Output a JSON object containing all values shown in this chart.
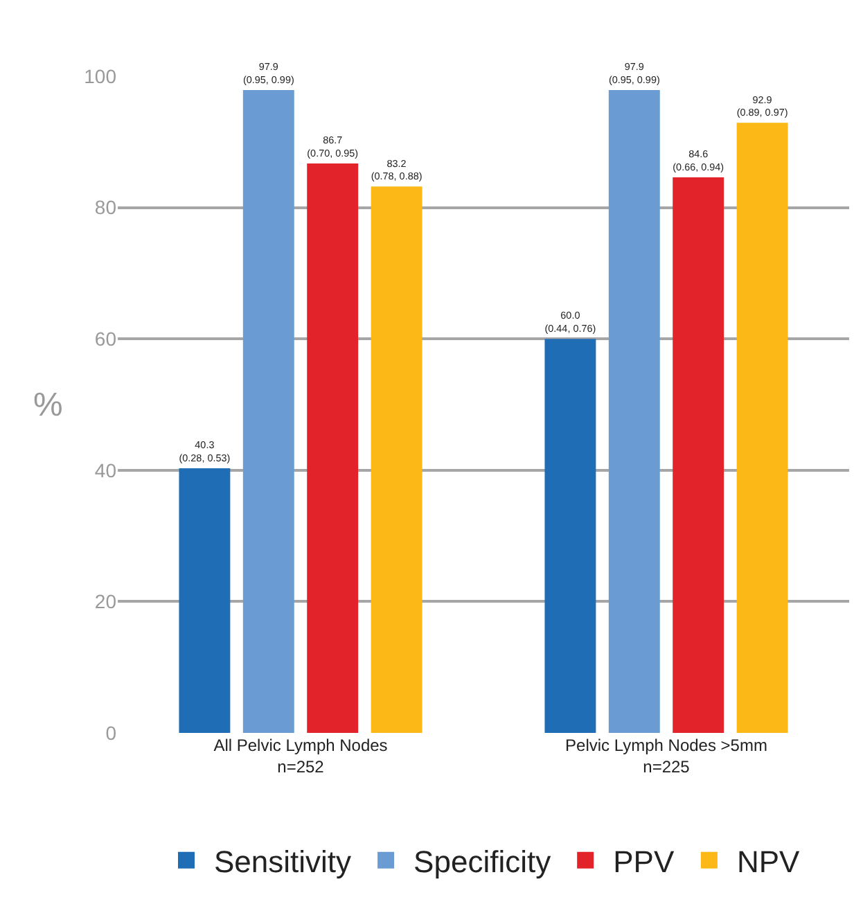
{
  "chart_data": {
    "type": "bar",
    "ylabel": "%",
    "categories": [
      "All Pelvic Lymph Nodes\nn=252",
      "Pelvic Lymph Nodes >5mm\nn=225"
    ],
    "series": [
      {
        "name": "Sensitivity",
        "color": "#1f6db4",
        "values": [
          40.3,
          60.0
        ],
        "value_labels": [
          "40.3\n(0.28, 0.53)",
          "60.0\n(0.44, 0.76)"
        ]
      },
      {
        "name": "Specificity",
        "color": "#6a9bd3",
        "values": [
          97.9,
          97.9
        ],
        "value_labels": [
          "97.9\n(0.95, 0.99)",
          "97.9\n(0.95, 0.99)"
        ]
      },
      {
        "name": "PPV",
        "color": "#e2232a",
        "values": [
          86.7,
          84.6
        ],
        "value_labels": [
          "86.7\n(0.70, 0.95)",
          "84.6\n(0.66, 0.94)"
        ]
      },
      {
        "name": "NPV",
        "color": "#fbb816",
        "values": [
          83.2,
          92.9
        ],
        "value_labels": [
          "83.2\n(0.78, 0.88)",
          "92.9\n(0.89, 0.97)"
        ]
      }
    ],
    "ylim": [
      0,
      100
    ],
    "yticks": [
      0,
      20,
      40,
      60,
      80,
      100
    ],
    "grid": "y",
    "legend": "bottom"
  }
}
